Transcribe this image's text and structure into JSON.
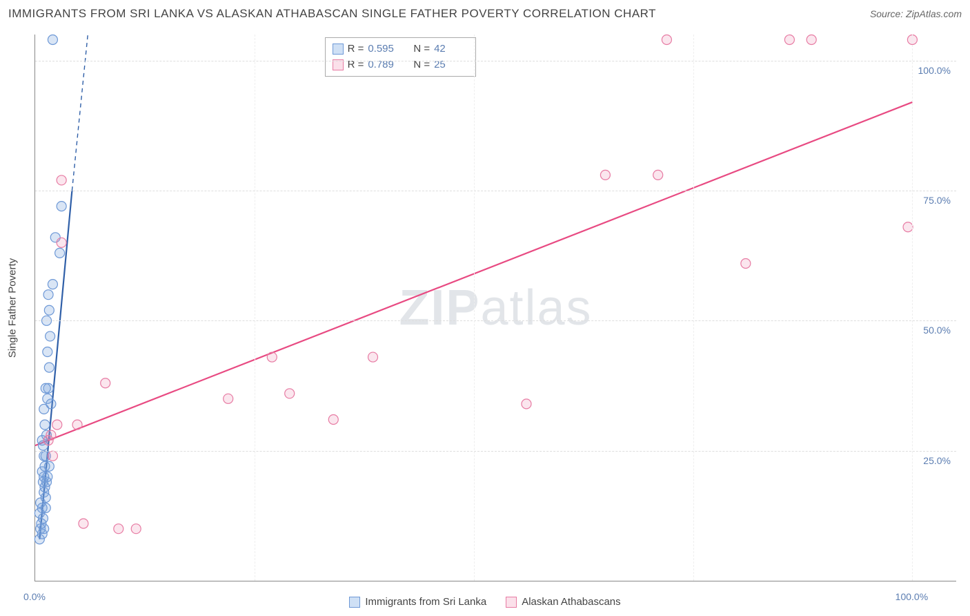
{
  "title": "IMMIGRANTS FROM SRI LANKA VS ALASKAN ATHABASCAN SINGLE FATHER POVERTY CORRELATION CHART",
  "source_label": "Source: ",
  "source_value": "ZipAtlas.com",
  "ylabel": "Single Father Poverty",
  "watermark_a": "ZIP",
  "watermark_b": "atlas",
  "chart": {
    "type": "scatter",
    "xlim": [
      0,
      105
    ],
    "ylim": [
      0,
      105
    ],
    "xticks": [
      {
        "pos": 0,
        "label": "0.0%"
      },
      {
        "pos": 100,
        "label": "100.0%"
      }
    ],
    "yticks": [
      {
        "pos": 25,
        "label": "25.0%"
      },
      {
        "pos": 50,
        "label": "50.0%"
      },
      {
        "pos": 75,
        "label": "75.0%"
      },
      {
        "pos": 100,
        "label": "100.0%"
      }
    ],
    "xgrid": [
      25,
      50,
      75,
      100
    ],
    "background_color": "#ffffff",
    "grid_color": "#dddddd",
    "marker_radius": 7,
    "marker_stroke_width": 1.2,
    "line_width": 2.2,
    "series": [
      {
        "id": "sri_lanka",
        "name": "Immigrants from Sri Lanka",
        "color_fill": "rgba(120,160,220,0.28)",
        "color_stroke": "#6d98d6",
        "swatch_fill": "#cfe0f5",
        "swatch_stroke": "#6d98d6",
        "line_color": "#2f5fa8",
        "R": "0.595",
        "N": "42",
        "trend": {
          "x1": 0.5,
          "y1": 8,
          "x2": 4.2,
          "y2": 75,
          "dash_x2": 6.0,
          "dash_y2": 105
        },
        "points": [
          [
            0.5,
            8
          ],
          [
            0.8,
            9
          ],
          [
            0.6,
            10
          ],
          [
            1.0,
            10
          ],
          [
            0.7,
            11
          ],
          [
            0.9,
            12
          ],
          [
            0.8,
            14
          ],
          [
            1.2,
            14
          ],
          [
            0.6,
            15
          ],
          [
            1.0,
            17
          ],
          [
            1.1,
            18
          ],
          [
            0.9,
            19
          ],
          [
            1.3,
            19
          ],
          [
            1.0,
            20
          ],
          [
            0.8,
            21
          ],
          [
            1.4,
            20
          ],
          [
            1.1,
            22
          ],
          [
            1.6,
            22
          ],
          [
            1.0,
            24
          ],
          [
            1.2,
            24
          ],
          [
            0.8,
            27
          ],
          [
            1.3,
            28
          ],
          [
            1.1,
            30
          ],
          [
            1.0,
            33
          ],
          [
            1.8,
            34
          ],
          [
            1.5,
            37
          ],
          [
            1.2,
            37
          ],
          [
            1.6,
            41
          ],
          [
            1.4,
            44
          ],
          [
            1.3,
            50
          ],
          [
            1.6,
            52
          ],
          [
            1.5,
            55
          ],
          [
            2.0,
            57
          ],
          [
            2.8,
            63
          ],
          [
            2.3,
            66
          ],
          [
            3.0,
            72
          ],
          [
            2.0,
            104
          ],
          [
            1.4,
            35
          ],
          [
            1.2,
            16
          ],
          [
            0.5,
            13
          ],
          [
            0.9,
            26
          ],
          [
            1.7,
            47
          ]
        ]
      },
      {
        "id": "alaskan",
        "name": "Alaskan Athabascans",
        "color_fill": "rgba(235,130,170,0.20)",
        "color_stroke": "#e77ba3",
        "swatch_fill": "#fbe0ea",
        "swatch_stroke": "#e77ba3",
        "line_color": "#e84a82",
        "R": "0.789",
        "N": "25",
        "trend": {
          "x1": 0,
          "y1": 26,
          "x2": 100,
          "y2": 92
        },
        "points": [
          [
            1.5,
            27
          ],
          [
            1.8,
            28
          ],
          [
            2.5,
            30
          ],
          [
            3.0,
            65
          ],
          [
            3.0,
            77
          ],
          [
            4.8,
            30
          ],
          [
            5.5,
            11
          ],
          [
            8.0,
            38
          ],
          [
            9.5,
            10
          ],
          [
            11.5,
            10
          ],
          [
            22.0,
            35
          ],
          [
            27.0,
            43
          ],
          [
            29.0,
            36
          ],
          [
            34.0,
            31
          ],
          [
            38.5,
            43
          ],
          [
            56.0,
            34
          ],
          [
            65.0,
            78
          ],
          [
            71.0,
            78
          ],
          [
            72.0,
            104
          ],
          [
            81.0,
            61
          ],
          [
            86.0,
            104
          ],
          [
            88.5,
            104
          ],
          [
            99.5,
            68
          ],
          [
            100.0,
            104
          ],
          [
            2.0,
            24
          ]
        ]
      }
    ]
  },
  "top_legend": {
    "rows": [
      {
        "swatch_fill": "#cfe0f5",
        "swatch_stroke": "#6d98d6",
        "r_label": "R =",
        "r_val": "0.595",
        "n_label": "N =",
        "n_val": "42"
      },
      {
        "swatch_fill": "#fbe0ea",
        "swatch_stroke": "#e77ba3",
        "r_label": "R =",
        "r_val": "0.789",
        "n_label": "N =",
        "n_val": "25"
      }
    ]
  }
}
